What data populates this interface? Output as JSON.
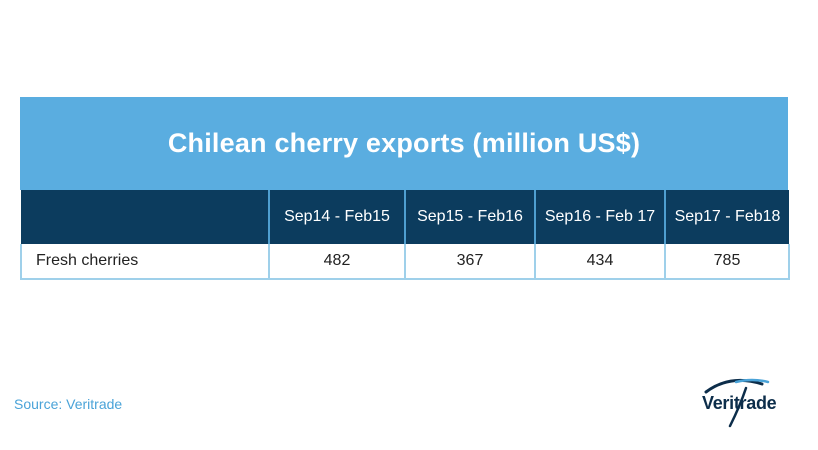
{
  "chart_data": {
    "type": "table",
    "title": "Chilean cherry exports (million US$)",
    "columns": [
      "",
      "Sep14 - Feb15",
      "Sep15 - Feb16",
      "Sep16 - Feb 17",
      "Sep17 - Feb18"
    ],
    "rows": [
      {
        "label": "Fresh cherries",
        "values": [
          "482",
          "367",
          "434",
          "785"
        ]
      }
    ]
  },
  "footer": {
    "source": "Source: Veritrade",
    "logo_text": "Veritrade"
  },
  "colors": {
    "title_background": "#5aade0",
    "header_background": "#0c3c5e",
    "grid_lines": "#9fd0ea",
    "source_text": "#4aa3d8",
    "logo_dark": "#0c2d4a",
    "logo_accent": "#4aa3d8"
  }
}
